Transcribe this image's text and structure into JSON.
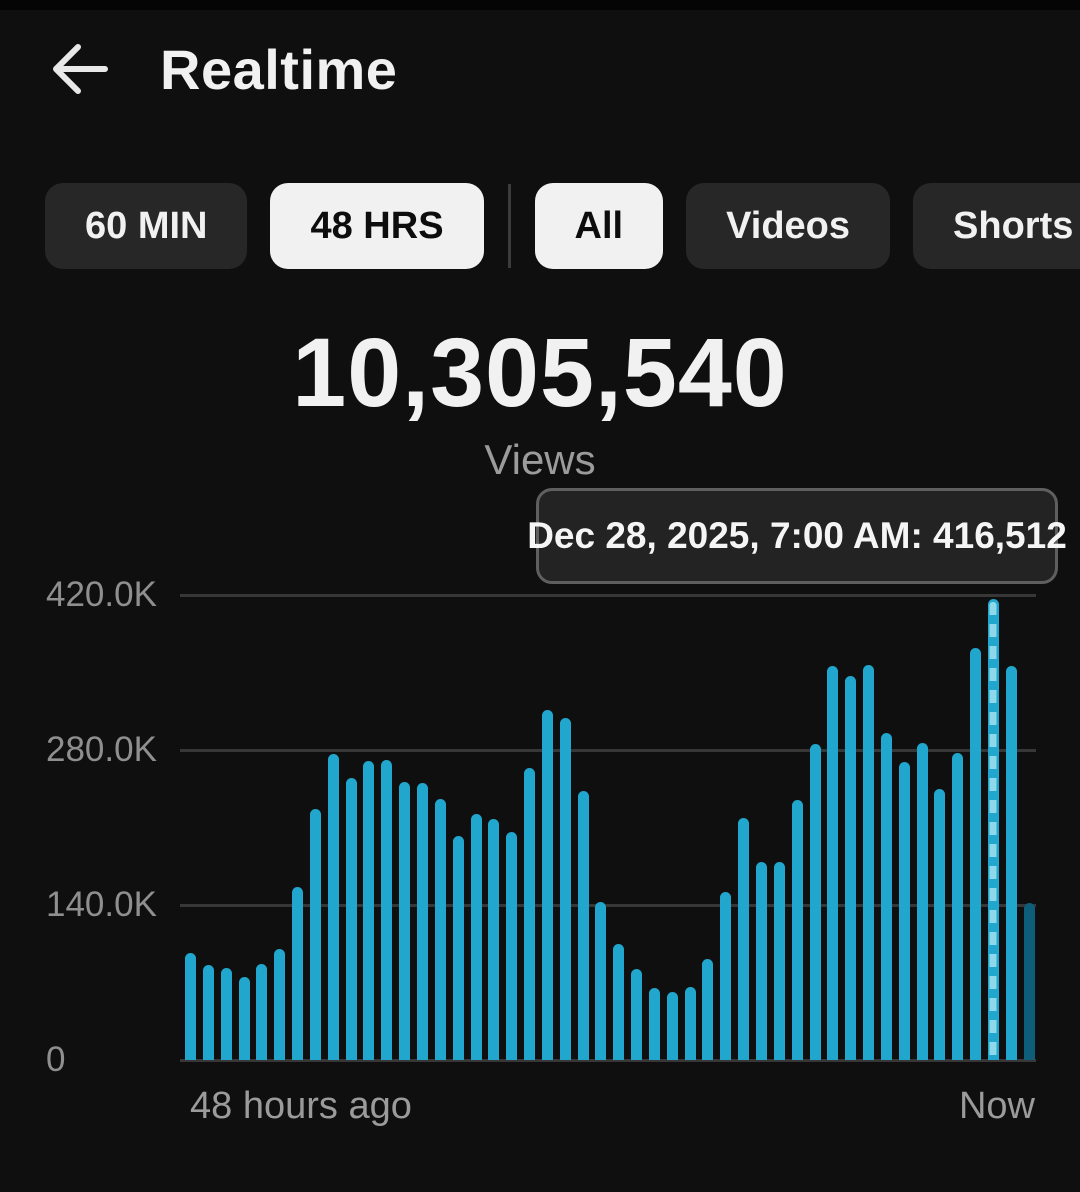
{
  "header": {
    "title": "Realtime"
  },
  "filters": {
    "time": [
      {
        "label": "60 MIN",
        "selected": false
      },
      {
        "label": "48 HRS",
        "selected": true
      }
    ],
    "content": [
      {
        "label": "All",
        "selected": true
      },
      {
        "label": "Videos",
        "selected": false
      },
      {
        "label": "Shorts",
        "selected": false
      }
    ]
  },
  "metric": {
    "value": "10,305,540",
    "label": "Views"
  },
  "tooltip": {
    "text": "Dec 28, 2025, 7:00 AM: 416,512"
  },
  "chart_data": {
    "type": "bar",
    "ylabel": "Views",
    "ylim": [
      0,
      420000
    ],
    "grid": true,
    "y_ticks": [
      {
        "label": "420.0K",
        "value": 420000
      },
      {
        "label": "280.0K",
        "value": 280000
      },
      {
        "label": "140.0K",
        "value": 140000
      },
      {
        "label": "0",
        "value": 0
      }
    ],
    "x_axis_labels": {
      "start": "48 hours ago",
      "end": "Now"
    },
    "values": [
      97000,
      86000,
      83000,
      75000,
      87000,
      100000,
      156000,
      227000,
      276000,
      255000,
      270000,
      271000,
      251000,
      250000,
      236000,
      202000,
      222000,
      218000,
      206000,
      264000,
      316000,
      309000,
      243000,
      143000,
      105000,
      82000,
      65000,
      61000,
      66000,
      91000,
      152000,
      219000,
      179000,
      179000,
      235000,
      285000,
      356000,
      347000,
      357000,
      295000,
      269000,
      286000,
      245000,
      277000,
      372000,
      416512,
      356000,
      142000
    ],
    "highlighted_index": 45,
    "highlighted_value": 416512,
    "current_hour_index": 47,
    "colors": {
      "bar": "#21a7cd",
      "current_bar": "#0e5d79",
      "highlight_dash": "#8ed8ea",
      "gridline": "#373737"
    }
  }
}
